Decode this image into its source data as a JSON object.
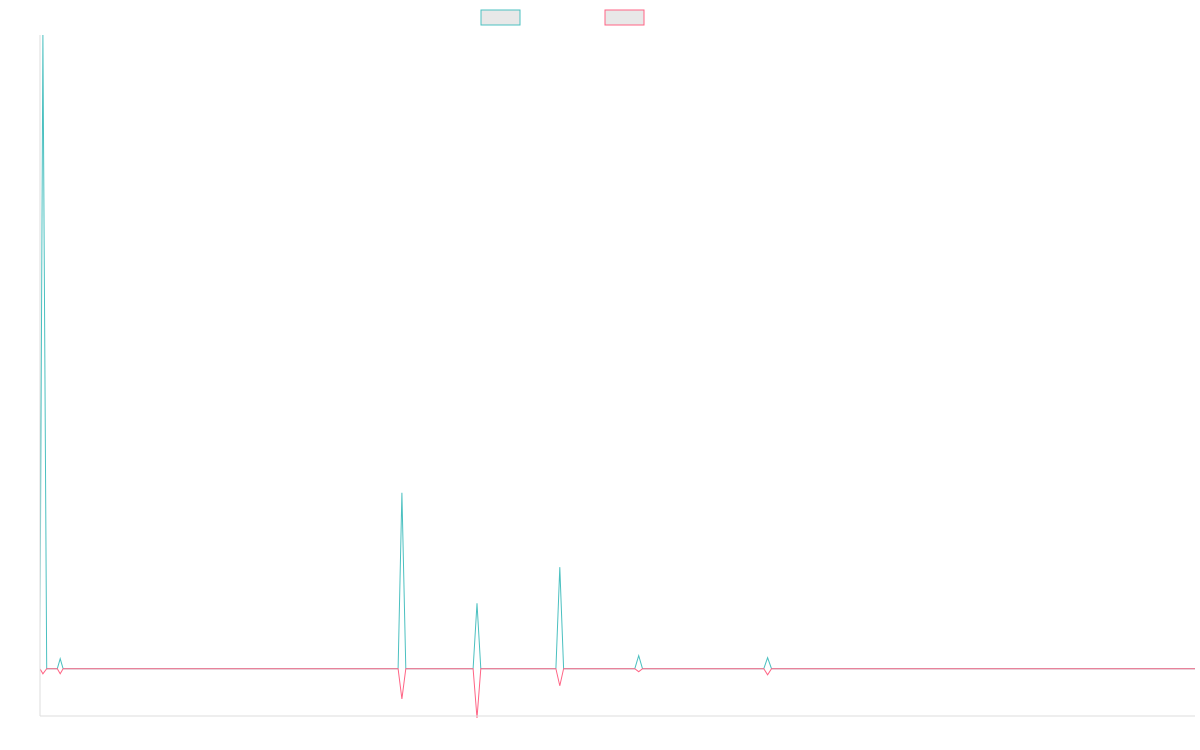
{
  "chart_data": {
    "type": "line",
    "title": "",
    "xlabel": "",
    "ylabel": "",
    "legend": "top-center",
    "grid": false,
    "xlim": [
      0,
      1200
    ],
    "ylim": [
      -47,
      630
    ],
    "x": [
      0,
      3,
      7,
      18,
      21,
      24,
      372,
      376,
      380,
      450,
      454,
      458,
      536,
      540,
      544,
      618,
      622,
      626,
      752,
      756,
      760,
      1200
    ],
    "series": [
      {
        "color": "#4bc0c0",
        "values": [
          35,
          630,
          0,
          0,
          10,
          0,
          0,
          175,
          0,
          0,
          65,
          0,
          0,
          101,
          0,
          0,
          13,
          0,
          0,
          11,
          0,
          0
        ]
      },
      {
        "color": "#ff6384",
        "values": [
          0,
          -5,
          0,
          0,
          -5,
          0,
          0,
          -30,
          0,
          0,
          -49,
          0,
          0,
          -17,
          0,
          0,
          -3,
          0,
          0,
          -6,
          0,
          0
        ]
      }
    ],
    "legend_fill": "#e8e8e8"
  }
}
